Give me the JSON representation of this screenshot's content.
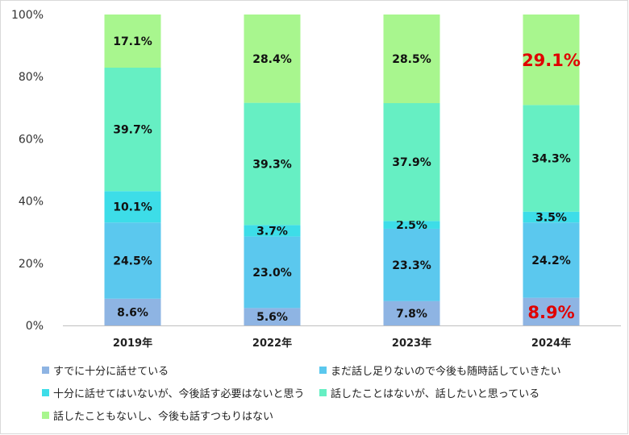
{
  "chart_data": {
    "type": "bar",
    "stacked": true,
    "categories": [
      "2019年",
      "2022年",
      "2023年",
      "2024年"
    ],
    "y_ticks": [
      "0%",
      "20%",
      "40%",
      "60%",
      "80%",
      "100%"
    ],
    "ylim": [
      0,
      100
    ],
    "grid": false,
    "legend_position": "bottom",
    "series": [
      {
        "name": "すでに十分に話せている",
        "color": "#8EB4E3",
        "values": [
          8.6,
          5.6,
          7.8,
          8.9
        ],
        "labels": [
          "8.6%",
          "5.6%",
          "7.8%",
          "8.9%"
        ]
      },
      {
        "name": "まだ話し足りないので今後も随時話していきたい",
        "color": "#5BC8EE",
        "values": [
          24.5,
          23.0,
          23.3,
          24.2
        ],
        "labels": [
          "24.5%",
          "23.0%",
          "23.3%",
          "24.2%"
        ]
      },
      {
        "name": "十分に話せてはいないが、今後話す必要はないと思う",
        "color": "#3DDDE8",
        "values": [
          10.1,
          3.7,
          2.5,
          3.5
        ],
        "labels": [
          "10.1%",
          "3.7%",
          "2.5%",
          "3.5%"
        ]
      },
      {
        "name": "話したことはないが、話したいと思っている",
        "color": "#66EFC3",
        "values": [
          39.7,
          39.3,
          37.9,
          34.3
        ],
        "labels": [
          "39.7%",
          "39.3%",
          "37.9%",
          "34.3%"
        ]
      },
      {
        "name": "話したこともないし、今後も話すつもりはない",
        "color": "#A8F68E",
        "values": [
          17.1,
          28.4,
          28.5,
          29.1
        ],
        "labels": [
          "17.1%",
          "28.4%",
          "28.5%",
          "29.1%"
        ]
      }
    ],
    "highlight": {
      "category_index": 3,
      "series_indices": [
        0,
        4
      ],
      "color": "#E00000"
    }
  }
}
